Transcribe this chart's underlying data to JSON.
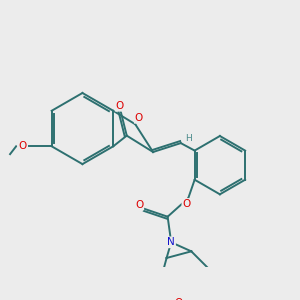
{
  "bg_color": "#ececec",
  "bond_color": "#2d7070",
  "bond_width": 1.4,
  "atom_colors": {
    "O": "#dd0000",
    "N": "#1111cc",
    "H": "#4a8a8a"
  },
  "figsize": [
    3.0,
    3.0
  ],
  "dpi": 100
}
